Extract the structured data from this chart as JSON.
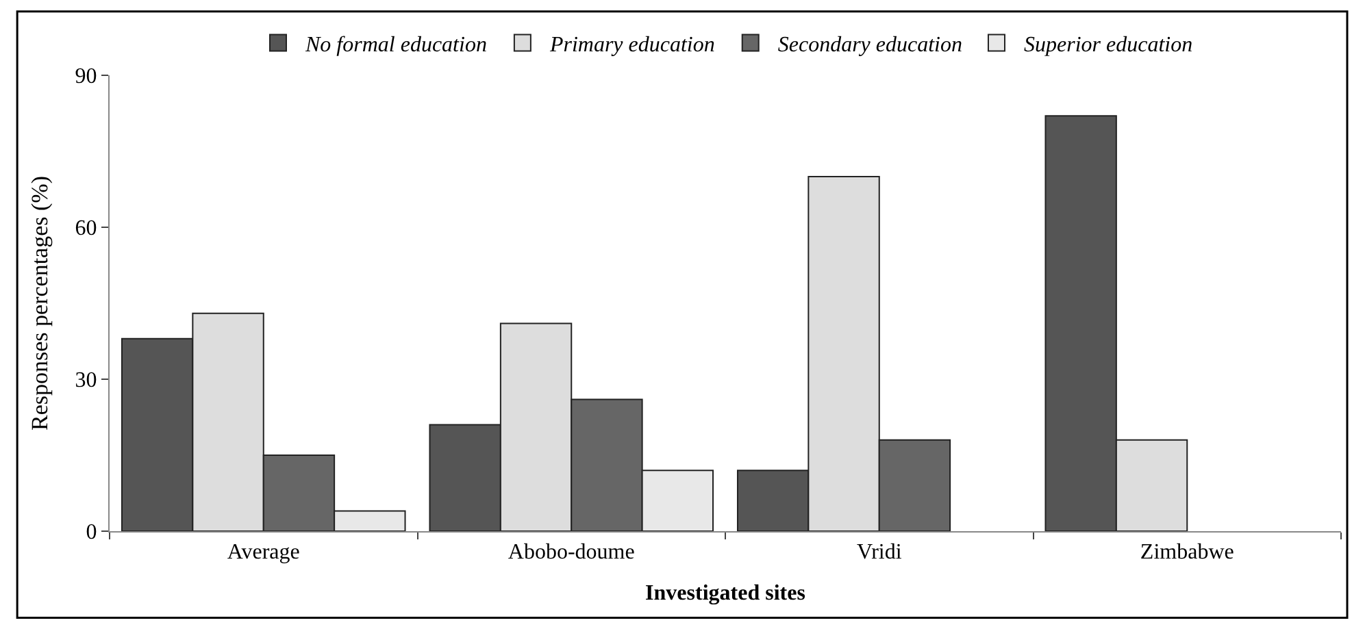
{
  "chart_data": {
    "type": "bar",
    "xlabel": "Investigated sites",
    "ylabel": "Responses percentages (%)",
    "categories": [
      "Average",
      "Abobo-doume",
      "Vridi",
      "Zimbabwe"
    ],
    "series": [
      {
        "name": "No formal education",
        "color": "#555555",
        "values": [
          38,
          21,
          12,
          82
        ]
      },
      {
        "name": "Primary education",
        "color": "#dddddd",
        "values": [
          43,
          41,
          70,
          18
        ]
      },
      {
        "name": "Secondary education",
        "color": "#666666",
        "values": [
          15,
          26,
          18,
          null
        ]
      },
      {
        "name": "Superior education",
        "color": "#e8e8e8",
        "values": [
          4,
          12,
          null,
          null
        ]
      }
    ],
    "ylim": [
      0,
      90
    ],
    "yticks": [
      0,
      30,
      60,
      90
    ],
    "legend": "top"
  }
}
